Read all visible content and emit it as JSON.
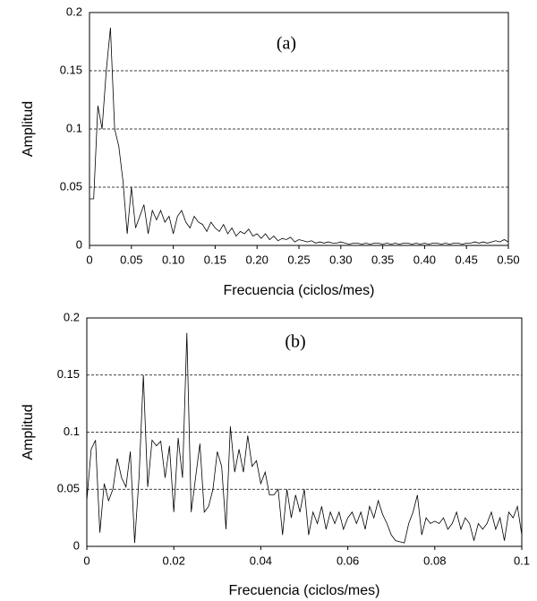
{
  "chart_data": [
    {
      "type": "line",
      "title": "(a)",
      "xlabel": "Frecuencia (ciclos/mes)",
      "ylabel": "Amplitud",
      "color": "#000000",
      "grid": true,
      "xlim": [
        0,
        0.5
      ],
      "ylim": [
        0,
        0.2
      ],
      "xticks": [
        0,
        0.05,
        {
          "value": 0.1,
          "label": "0.10"
        },
        0.15,
        {
          "value": 0.2,
          "label": "0.20"
        },
        0.25,
        {
          "value": 0.3,
          "label": "0.30"
        },
        0.35,
        {
          "value": 0.4,
          "label": "0.40"
        },
        0.45,
        {
          "value": 0.5,
          "label": "0.50"
        }
      ],
      "yticks": [
        0,
        0.05,
        0.1,
        0.15,
        0.2
      ],
      "x": [
        0,
        0.005,
        0.01,
        0.015,
        0.02,
        0.025,
        0.03,
        0.035,
        0.04,
        0.045,
        0.05,
        0.055,
        0.06,
        0.065,
        0.07,
        0.075,
        0.08,
        0.085,
        0.09,
        0.095,
        0.1,
        0.105,
        0.11,
        0.115,
        0.12,
        0.125,
        0.13,
        0.135,
        0.14,
        0.145,
        0.15,
        0.155,
        0.16,
        0.165,
        0.17,
        0.175,
        0.18,
        0.185,
        0.19,
        0.195,
        0.2,
        0.205,
        0.21,
        0.215,
        0.22,
        0.225,
        0.23,
        0.235,
        0.24,
        0.245,
        0.25,
        0.255,
        0.26,
        0.265,
        0.27,
        0.275,
        0.28,
        0.285,
        0.29,
        0.295,
        0.3,
        0.305,
        0.31,
        0.315,
        0.32,
        0.325,
        0.33,
        0.335,
        0.34,
        0.345,
        0.35,
        0.355,
        0.36,
        0.365,
        0.37,
        0.375,
        0.38,
        0.385,
        0.39,
        0.395,
        0.4,
        0.405,
        0.41,
        0.415,
        0.42,
        0.425,
        0.43,
        0.435,
        0.44,
        0.445,
        0.45,
        0.455,
        0.46,
        0.465,
        0.47,
        0.475,
        0.48,
        0.485,
        0.49,
        0.495,
        0.5
      ],
      "values": [
        0.04,
        0.04,
        0.12,
        0.1,
        0.15,
        0.187,
        0.1,
        0.085,
        0.055,
        0.01,
        0.05,
        0.015,
        0.025,
        0.035,
        0.01,
        0.03,
        0.022,
        0.03,
        0.02,
        0.025,
        0.01,
        0.025,
        0.03,
        0.02,
        0.015,
        0.025,
        0.02,
        0.018,
        0.012,
        0.02,
        0.015,
        0.012,
        0.018,
        0.01,
        0.015,
        0.008,
        0.012,
        0.01,
        0.014,
        0.008,
        0.01,
        0.006,
        0.01,
        0.005,
        0.008,
        0.004,
        0.006,
        0.005,
        0.007,
        0.003,
        0.005,
        0.004,
        0.003,
        0.004,
        0.002,
        0.003,
        0.002,
        0.003,
        0.002,
        0.002,
        0.003,
        0.002,
        0.001,
        0.002,
        0.002,
        0.001,
        0.002,
        0.001,
        0.002,
        0.002,
        0.001,
        0.002,
        0.001,
        0.002,
        0.001,
        0.002,
        0.002,
        0.001,
        0.002,
        0.001,
        0.002,
        0.001,
        0.002,
        0.002,
        0.001,
        0.002,
        0.001,
        0.002,
        0.002,
        0.001,
        0.002,
        0.002,
        0.003,
        0.002,
        0.003,
        0.002,
        0.003,
        0.004,
        0.003,
        0.005,
        0.003
      ]
    },
    {
      "type": "line",
      "title": "(b)",
      "xlabel": "Frecuencia (ciclos/mes)",
      "ylabel": "Amplitud",
      "color": "#000000",
      "grid": true,
      "xlim": [
        0,
        0.1
      ],
      "ylim": [
        0,
        0.2
      ],
      "xticks": [
        0,
        0.02,
        0.04,
        0.06,
        0.08,
        0.1
      ],
      "yticks": [
        0,
        0.05,
        0.1,
        0.15,
        0.2
      ],
      "x": [
        0,
        0.001,
        0.002,
        0.003,
        0.004,
        0.005,
        0.006,
        0.007,
        0.008,
        0.009,
        0.01,
        0.011,
        0.012,
        0.013,
        0.014,
        0.015,
        0.016,
        0.017,
        0.018,
        0.019,
        0.02,
        0.021,
        0.022,
        0.023,
        0.024,
        0.025,
        0.026,
        0.027,
        0.028,
        0.029,
        0.03,
        0.031,
        0.032,
        0.033,
        0.034,
        0.035,
        0.036,
        0.037,
        0.038,
        0.039,
        0.04,
        0.041,
        0.042,
        0.043,
        0.044,
        0.045,
        0.046,
        0.047,
        0.048,
        0.049,
        0.05,
        0.051,
        0.052,
        0.053,
        0.054,
        0.055,
        0.056,
        0.057,
        0.058,
        0.059,
        0.06,
        0.061,
        0.062,
        0.063,
        0.064,
        0.065,
        0.066,
        0.067,
        0.068,
        0.069,
        0.07,
        0.071,
        0.072,
        0.073,
        0.074,
        0.075,
        0.076,
        0.077,
        0.078,
        0.079,
        0.08,
        0.081,
        0.082,
        0.083,
        0.084,
        0.085,
        0.086,
        0.087,
        0.088,
        0.089,
        0.09,
        0.091,
        0.092,
        0.093,
        0.094,
        0.095,
        0.096,
        0.097,
        0.098,
        0.099,
        0.1
      ],
      "values": [
        0.04,
        0.085,
        0.093,
        0.012,
        0.055,
        0.04,
        0.05,
        0.077,
        0.06,
        0.052,
        0.083,
        0.003,
        0.06,
        0.15,
        0.052,
        0.093,
        0.088,
        0.092,
        0.06,
        0.088,
        0.03,
        0.095,
        0.06,
        0.187,
        0.03,
        0.06,
        0.09,
        0.03,
        0.035,
        0.05,
        0.083,
        0.07,
        0.015,
        0.105,
        0.065,
        0.085,
        0.065,
        0.097,
        0.07,
        0.075,
        0.055,
        0.065,
        0.045,
        0.045,
        0.05,
        0.01,
        0.05,
        0.025,
        0.045,
        0.03,
        0.05,
        0.01,
        0.03,
        0.02,
        0.035,
        0.015,
        0.03,
        0.02,
        0.03,
        0.015,
        0.025,
        0.03,
        0.02,
        0.03,
        0.015,
        0.035,
        0.025,
        0.04,
        0.028,
        0.02,
        0.01,
        0.005,
        0.004,
        0.003,
        0.02,
        0.03,
        0.045,
        0.01,
        0.025,
        0.02,
        0.022,
        0.02,
        0.025,
        0.015,
        0.02,
        0.03,
        0.015,
        0.025,
        0.02,
        0.005,
        0.02,
        0.015,
        0.02,
        0.03,
        0.015,
        0.025,
        0.005,
        0.03,
        0.025,
        0.035,
        0.01
      ]
    }
  ]
}
